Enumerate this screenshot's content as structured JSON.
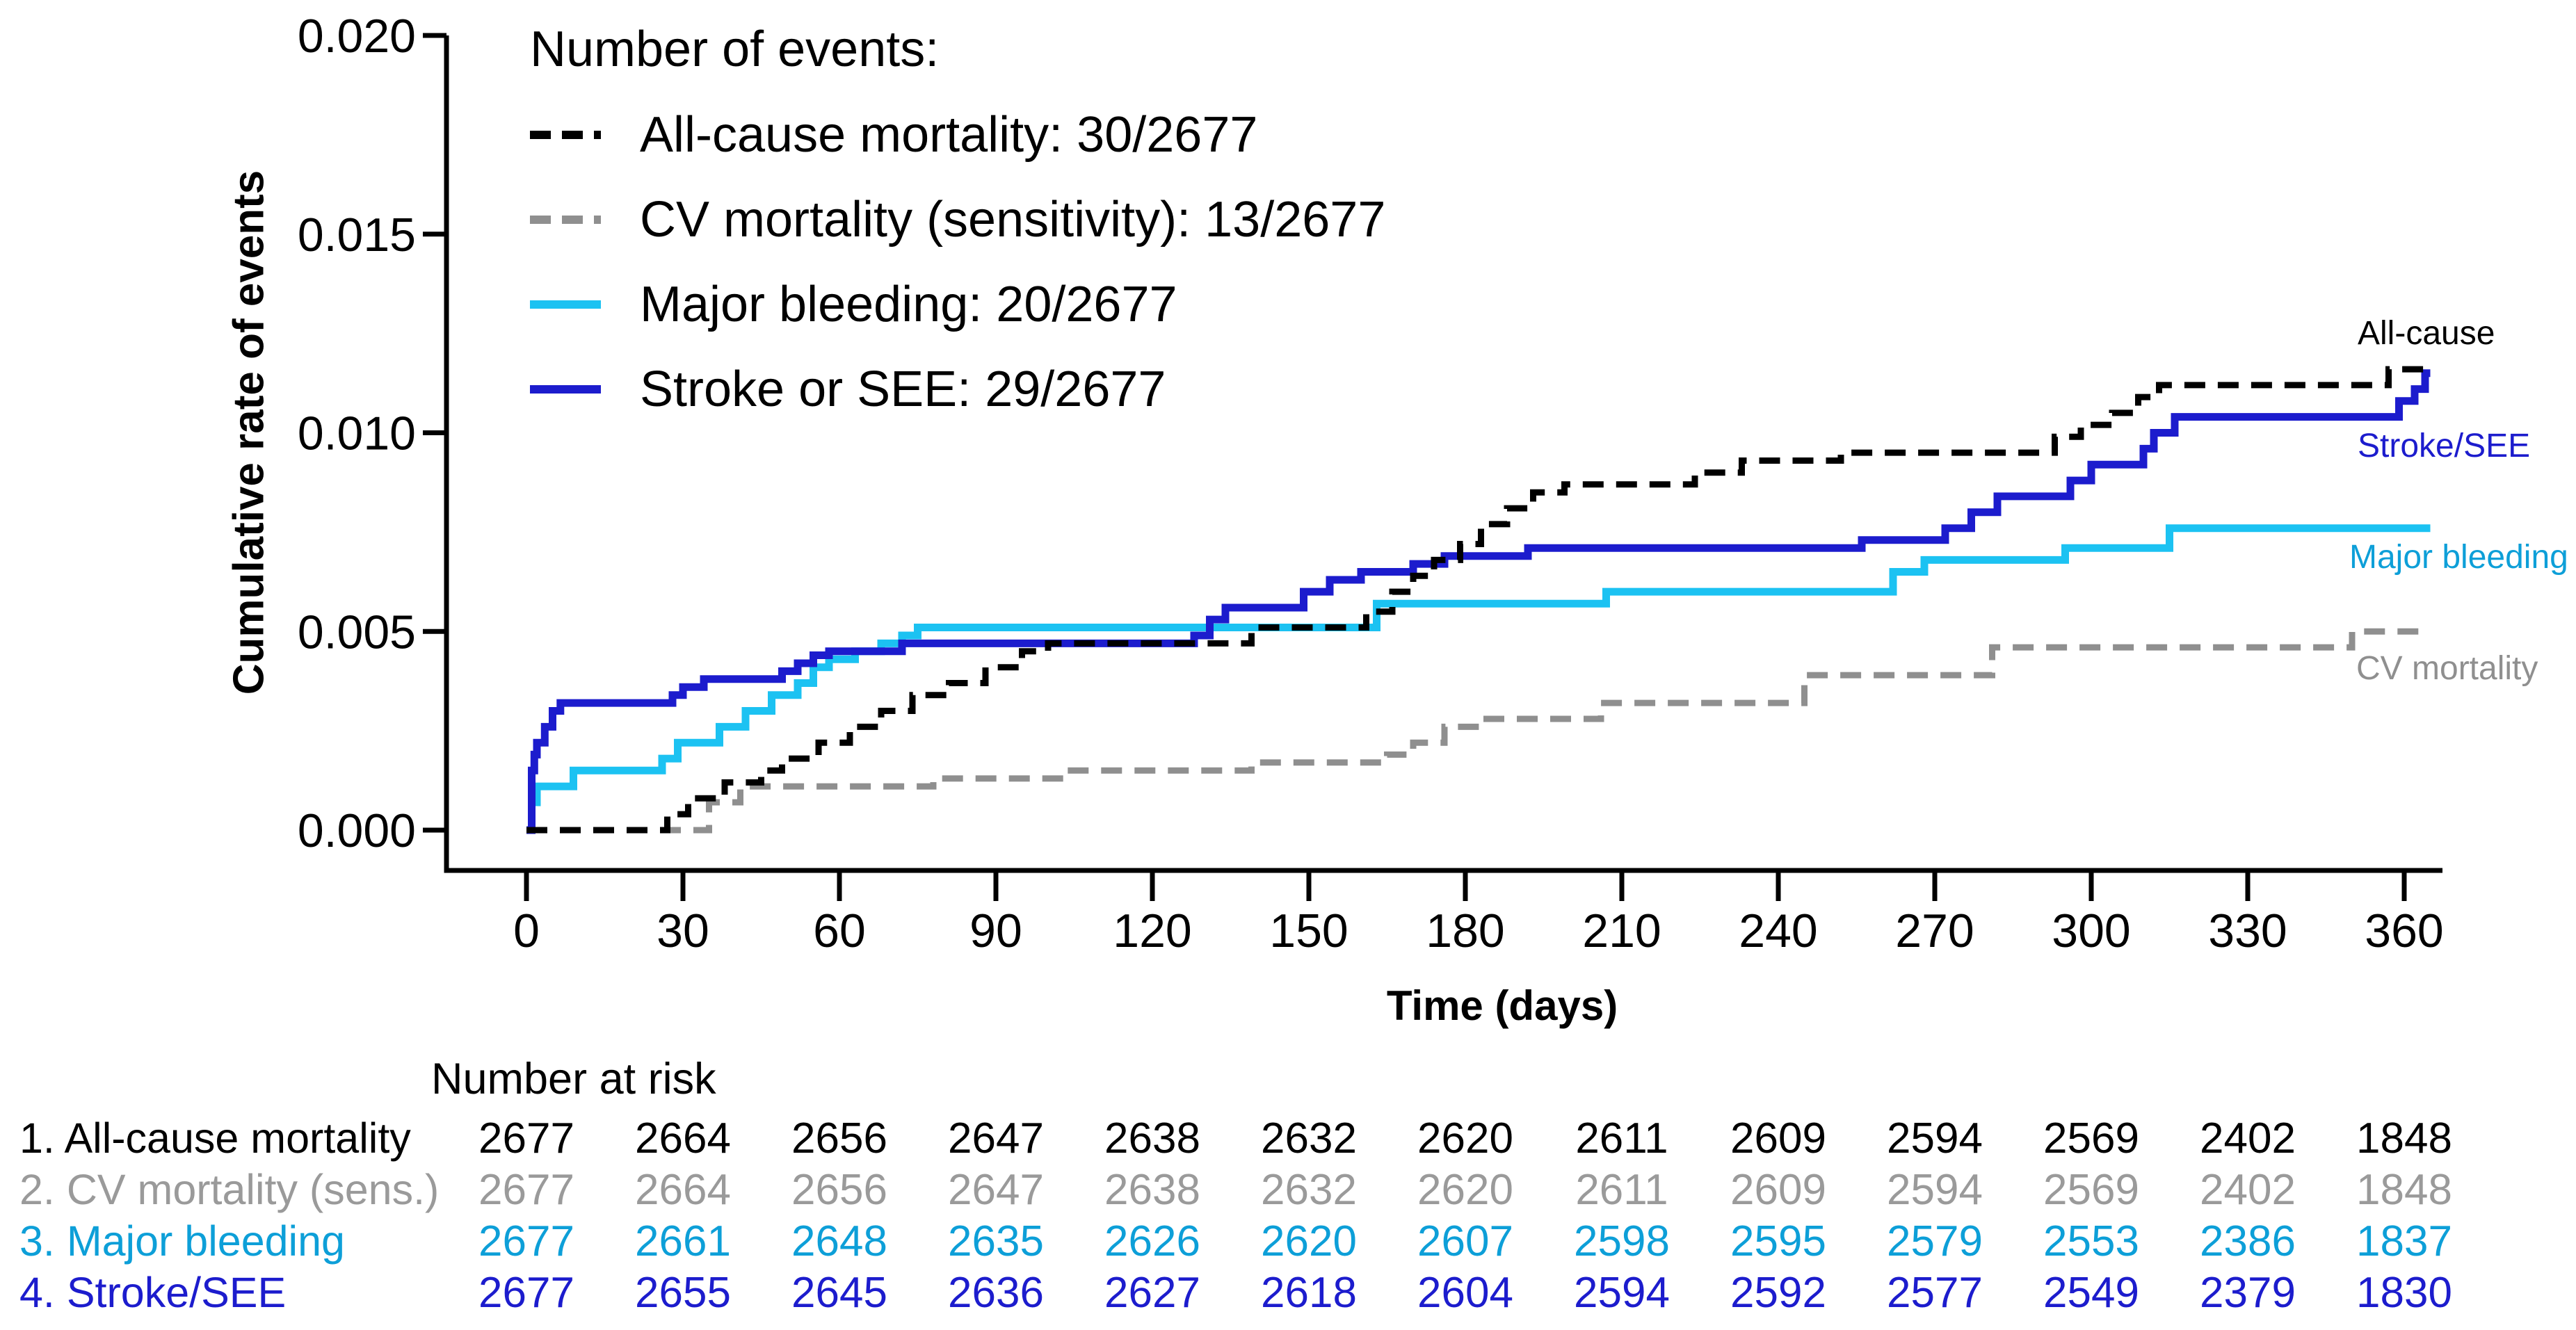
{
  "figure": {
    "y_axis_label": "Cumulative rate of events",
    "x_axis_label": "Time (days)",
    "legend_title": "Number of events:",
    "legend": [
      {
        "label": "All-cause mortality: 30/2677",
        "color": "#000000",
        "dashed": true
      },
      {
        "label": "CV mortality (sensitivity): 13/2677",
        "color": "#8f8f8f",
        "dashed": true
      },
      {
        "label": "Major bleeding: 20/2677",
        "color": "#1cc2f2",
        "dashed": false
      },
      {
        "label": "Stroke or SEE: 29/2677",
        "color": "#1c1ccd",
        "dashed": false
      }
    ],
    "curve_labels": [
      {
        "text": "All-cause",
        "color": "#000000"
      },
      {
        "text": "Stroke/SEE",
        "color": "#1c1ccd"
      },
      {
        "text": "Major bleeding",
        "color": "#0d9fd8"
      },
      {
        "text": "CV mortality",
        "color": "#8f8f8f"
      }
    ]
  },
  "chart_data": {
    "type": "line",
    "subtype": "kaplan-meier-step",
    "title": "",
    "xlabel": "Time (days)",
    "ylabel": "Cumulative rate of events",
    "xlim": [
      0,
      370
    ],
    "ylim": [
      0,
      0.02
    ],
    "x_ticks": [
      0,
      30,
      60,
      90,
      120,
      150,
      180,
      210,
      240,
      270,
      300,
      330,
      360
    ],
    "y_tick_values": [
      0.0,
      0.005,
      0.01,
      0.015,
      0.02
    ],
    "y_tick_labels": [
      "0.000",
      "0.005",
      "0.010",
      "0.015",
      "0.020"
    ],
    "grid": false,
    "legend_position": "top-left-inside",
    "xmax_draw": 365,
    "series": [
      {
        "name": "Major bleeding",
        "events": "20/2677",
        "color": "#1cc2f2",
        "dashed": false,
        "width": 11,
        "points": [
          [
            0,
            0
          ],
          [
            1,
            0.0007
          ],
          [
            2,
            0.0011
          ],
          [
            9,
            0.0015
          ],
          [
            26,
            0.0018
          ],
          [
            29,
            0.0022
          ],
          [
            37,
            0.0026
          ],
          [
            42,
            0.003
          ],
          [
            47,
            0.0034
          ],
          [
            52,
            0.0037
          ],
          [
            55,
            0.0041
          ],
          [
            58,
            0.0043
          ],
          [
            63,
            0.0045
          ],
          [
            68,
            0.0047
          ],
          [
            72,
            0.0049
          ],
          [
            75,
            0.0051
          ],
          [
            163,
            0.0057
          ],
          [
            207,
            0.006
          ],
          [
            262,
            0.0065
          ],
          [
            268,
            0.0068
          ],
          [
            295,
            0.0071
          ],
          [
            315,
            0.0076
          ],
          [
            365,
            0.0076
          ]
        ]
      },
      {
        "name": "Stroke or SEE",
        "events": "29/2677",
        "color": "#1c1ccd",
        "dashed": false,
        "width": 11,
        "points": [
          [
            0,
            0
          ],
          [
            1,
            0.0015
          ],
          [
            1.5,
            0.0019
          ],
          [
            2,
            0.0022
          ],
          [
            3.5,
            0.0026
          ],
          [
            5,
            0.003
          ],
          [
            6.5,
            0.0032
          ],
          [
            28,
            0.0034
          ],
          [
            30,
            0.0036
          ],
          [
            34,
            0.0038
          ],
          [
            49,
            0.004
          ],
          [
            52,
            0.0042
          ],
          [
            55,
            0.0044
          ],
          [
            58,
            0.0045
          ],
          [
            72,
            0.0047
          ],
          [
            128,
            0.0049
          ],
          [
            131,
            0.0053
          ],
          [
            134,
            0.0056
          ],
          [
            149,
            0.006
          ],
          [
            154,
            0.0063
          ],
          [
            160,
            0.0065
          ],
          [
            170,
            0.0067
          ],
          [
            176,
            0.0069
          ],
          [
            192,
            0.0071
          ],
          [
            256,
            0.0073
          ],
          [
            272,
            0.0076
          ],
          [
            277,
            0.008
          ],
          [
            282,
            0.0084
          ],
          [
            296,
            0.0088
          ],
          [
            300,
            0.0092
          ],
          [
            310,
            0.0096
          ],
          [
            312,
            0.01
          ],
          [
            316,
            0.0104
          ],
          [
            359,
            0.0108
          ],
          [
            362,
            0.0111
          ],
          [
            364,
            0.0115
          ],
          [
            365,
            0.0115
          ]
        ]
      },
      {
        "name": "CV mortality (sensitivity)",
        "events": "13/2677",
        "color": "#8f8f8f",
        "dashed": true,
        "width": 9,
        "points": [
          [
            0,
            0
          ],
          [
            35,
            0.0007
          ],
          [
            41,
            0.0011
          ],
          [
            78,
            0.0013
          ],
          [
            103,
            0.0015
          ],
          [
            139,
            0.0017
          ],
          [
            165,
            0.0019
          ],
          [
            170,
            0.0022
          ],
          [
            176,
            0.0026
          ],
          [
            183,
            0.0028
          ],
          [
            206,
            0.0032
          ],
          [
            245,
            0.0039
          ],
          [
            281,
            0.0046
          ],
          [
            350,
            0.005
          ],
          [
            365,
            0.005
          ]
        ]
      },
      {
        "name": "All-cause mortality",
        "events": "30/2677",
        "color": "#000000",
        "dashed": true,
        "width": 9,
        "points": [
          [
            0,
            0
          ],
          [
            27,
            0.0004
          ],
          [
            31,
            0.0008
          ],
          [
            38,
            0.0012
          ],
          [
            45,
            0.0015
          ],
          [
            49,
            0.0018
          ],
          [
            56,
            0.0022
          ],
          [
            62,
            0.0026
          ],
          [
            68,
            0.003
          ],
          [
            74,
            0.0034
          ],
          [
            81,
            0.0037
          ],
          [
            88,
            0.0041
          ],
          [
            95,
            0.0045
          ],
          [
            100,
            0.0047
          ],
          [
            139,
            0.0051
          ],
          [
            161,
            0.0055
          ],
          [
            166,
            0.006
          ],
          [
            170,
            0.0064
          ],
          [
            174,
            0.0068
          ],
          [
            179,
            0.0072
          ],
          [
            183,
            0.0077
          ],
          [
            188,
            0.0081
          ],
          [
            193,
            0.0085
          ],
          [
            199,
            0.0087
          ],
          [
            224,
            0.009
          ],
          [
            233,
            0.0093
          ],
          [
            252,
            0.0095
          ],
          [
            293,
            0.0099
          ],
          [
            298,
            0.0102
          ],
          [
            304,
            0.0105
          ],
          [
            309,
            0.0109
          ],
          [
            313,
            0.0112
          ],
          [
            357,
            0.0116
          ],
          [
            365,
            0.0116
          ]
        ]
      }
    ]
  },
  "risk_table": {
    "header": "Number at risk",
    "timepoints": [
      0,
      30,
      60,
      90,
      120,
      150,
      180,
      210,
      240,
      270,
      300,
      330,
      360
    ],
    "rows": [
      {
        "label": "1. All-cause mortality",
        "color": "#000000",
        "values": [
          "2677",
          "2664",
          "2656",
          "2647",
          "2638",
          "2632",
          "2620",
          "2611",
          "2609",
          "2594",
          "2569",
          "2402",
          "1848"
        ]
      },
      {
        "label": "2. CV mortality (sens.)",
        "color": "#9a9a9a",
        "values": [
          "2677",
          "2664",
          "2656",
          "2647",
          "2638",
          "2632",
          "2620",
          "2611",
          "2609",
          "2594",
          "2569",
          "2402",
          "1848"
        ]
      },
      {
        "label": "3. Major bleeding",
        "color": "#0d9fd8",
        "values": [
          "2677",
          "2661",
          "2648",
          "2635",
          "2626",
          "2620",
          "2607",
          "2598",
          "2595",
          "2579",
          "2553",
          "2386",
          "1837"
        ]
      },
      {
        "label": "4. Stroke/SEE",
        "color": "#1c1ccd",
        "values": [
          "2677",
          "2655",
          "2645",
          "2636",
          "2627",
          "2618",
          "2604",
          "2594",
          "2592",
          "2577",
          "2549",
          "2379",
          "1830"
        ]
      }
    ]
  }
}
